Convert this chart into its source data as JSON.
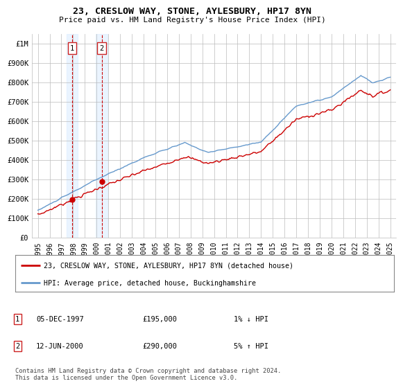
{
  "title": "23, CRESLOW WAY, STONE, AYLESBURY, HP17 8YN",
  "subtitle": "Price paid vs. HM Land Registry's House Price Index (HPI)",
  "legend_label_red": "23, CRESLOW WAY, STONE, AYLESBURY, HP17 8YN (detached house)",
  "legend_label_blue": "HPI: Average price, detached house, Buckinghamshire",
  "footnote": "Contains HM Land Registry data © Crown copyright and database right 2024.\nThis data is licensed under the Open Government Licence v3.0.",
  "transaction1_date": "05-DEC-1997",
  "transaction1_price": "£195,000",
  "transaction1_hpi": "1% ↓ HPI",
  "transaction2_date": "12-JUN-2000",
  "transaction2_price": "£290,000",
  "transaction2_hpi": "5% ↑ HPI",
  "transaction1_x": 1997.92,
  "transaction1_y": 195000,
  "transaction2_x": 2000.44,
  "transaction2_y": 290000,
  "ylim_min": 0,
  "ylim_max": 1050000,
  "xlim_min": 1994.5,
  "xlim_max": 2025.5,
  "yticks": [
    0,
    100000,
    200000,
    300000,
    400000,
    500000,
    600000,
    700000,
    800000,
    900000,
    1000000
  ],
  "ytick_labels": [
    "£0",
    "£100K",
    "£200K",
    "£300K",
    "£400K",
    "£500K",
    "£600K",
    "£700K",
    "£800K",
    "£900K",
    "£1M"
  ],
  "xticks": [
    1995,
    1996,
    1997,
    1998,
    1999,
    2000,
    2001,
    2002,
    2003,
    2004,
    2005,
    2006,
    2007,
    2008,
    2009,
    2010,
    2011,
    2012,
    2013,
    2014,
    2015,
    2016,
    2017,
    2018,
    2019,
    2020,
    2021,
    2022,
    2023,
    2024,
    2025
  ],
  "color_red": "#cc0000",
  "color_blue": "#6699cc",
  "color_bg_highlight": "#ddeeff",
  "color_grid": "#bbbbbb",
  "color_dashed": "#cc0000"
}
